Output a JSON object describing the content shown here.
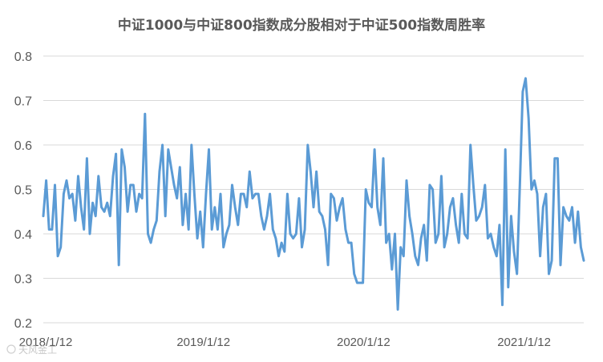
{
  "chart_data": {
    "type": "line",
    "title": "中证1000与中证800指数成分股相对于中证500指数周胜率",
    "xlabel": "",
    "ylabel": "",
    "ylim": [
      0.2,
      0.8
    ],
    "y_ticks": [
      "0.2",
      "0.3",
      "0.4",
      "0.5",
      "0.6",
      "0.7",
      "0.8"
    ],
    "x_range": [
      "2018-01-12",
      "2021-05-28"
    ],
    "x_ticks": [
      {
        "date": "2018-01-12",
        "label": "2018/1/12"
      },
      {
        "date": "2019-01-12",
        "label": "2019/1/12"
      },
      {
        "date": "2020-01-12",
        "label": "2020/1/12"
      },
      {
        "date": "2021-01-12",
        "label": "2021/1/12"
      }
    ],
    "grid": "horizontal",
    "legend": "none",
    "series": [
      {
        "color": "#5b9bd5",
        "frequency": "weekly",
        "start": "2018-01-12",
        "values": [
          0.44,
          0.52,
          0.41,
          0.41,
          0.51,
          0.35,
          0.37,
          0.49,
          0.52,
          0.48,
          0.49,
          0.43,
          0.53,
          0.46,
          0.41,
          0.57,
          0.4,
          0.47,
          0.44,
          0.53,
          0.46,
          0.45,
          0.47,
          0.44,
          0.53,
          0.58,
          0.33,
          0.59,
          0.55,
          0.45,
          0.51,
          0.51,
          0.45,
          0.49,
          0.48,
          0.67,
          0.4,
          0.38,
          0.41,
          0.43,
          0.54,
          0.6,
          0.44,
          0.59,
          0.55,
          0.51,
          0.48,
          0.55,
          0.42,
          0.49,
          0.41,
          0.6,
          0.49,
          0.39,
          0.45,
          0.37,
          0.49,
          0.59,
          0.41,
          0.46,
          0.41,
          0.49,
          0.37,
          0.4,
          0.42,
          0.51,
          0.46,
          0.42,
          0.49,
          0.49,
          0.46,
          0.54,
          0.48,
          0.49,
          0.49,
          0.44,
          0.41,
          0.44,
          0.49,
          0.41,
          0.39,
          0.35,
          0.38,
          0.36,
          0.49,
          0.4,
          0.39,
          0.4,
          0.48,
          0.37,
          0.41,
          0.6,
          0.54,
          0.46,
          0.54,
          0.45,
          0.44,
          0.41,
          0.33,
          0.49,
          0.48,
          0.43,
          0.46,
          0.48,
          0.41,
          0.38,
          0.38,
          0.31,
          0.29,
          0.29,
          0.29,
          0.5,
          0.47,
          0.46,
          0.59,
          0.46,
          0.42,
          0.57,
          0.38,
          0.4,
          0.32,
          0.4,
          0.23,
          0.37,
          0.35,
          0.52,
          0.44,
          0.4,
          0.35,
          0.33,
          0.39,
          0.42,
          0.34,
          0.51,
          0.5,
          0.38,
          0.4,
          0.53,
          0.37,
          0.4,
          0.46,
          0.48,
          0.42,
          0.38,
          0.49,
          0.4,
          0.39,
          0.6,
          0.51,
          0.43,
          0.44,
          0.46,
          0.51,
          0.39,
          0.4,
          0.37,
          0.35,
          0.42,
          0.24,
          0.59,
          0.28,
          0.44,
          0.36,
          0.31,
          0.51,
          0.72,
          0.75,
          0.66,
          0.5,
          0.52,
          0.49,
          0.35,
          0.46,
          0.49,
          0.31,
          0.34,
          0.57,
          0.57,
          0.33,
          0.46,
          0.44,
          0.43,
          0.46,
          0.38,
          0.45,
          0.37,
          0.34
        ]
      }
    ]
  },
  "watermark": "天风金工"
}
